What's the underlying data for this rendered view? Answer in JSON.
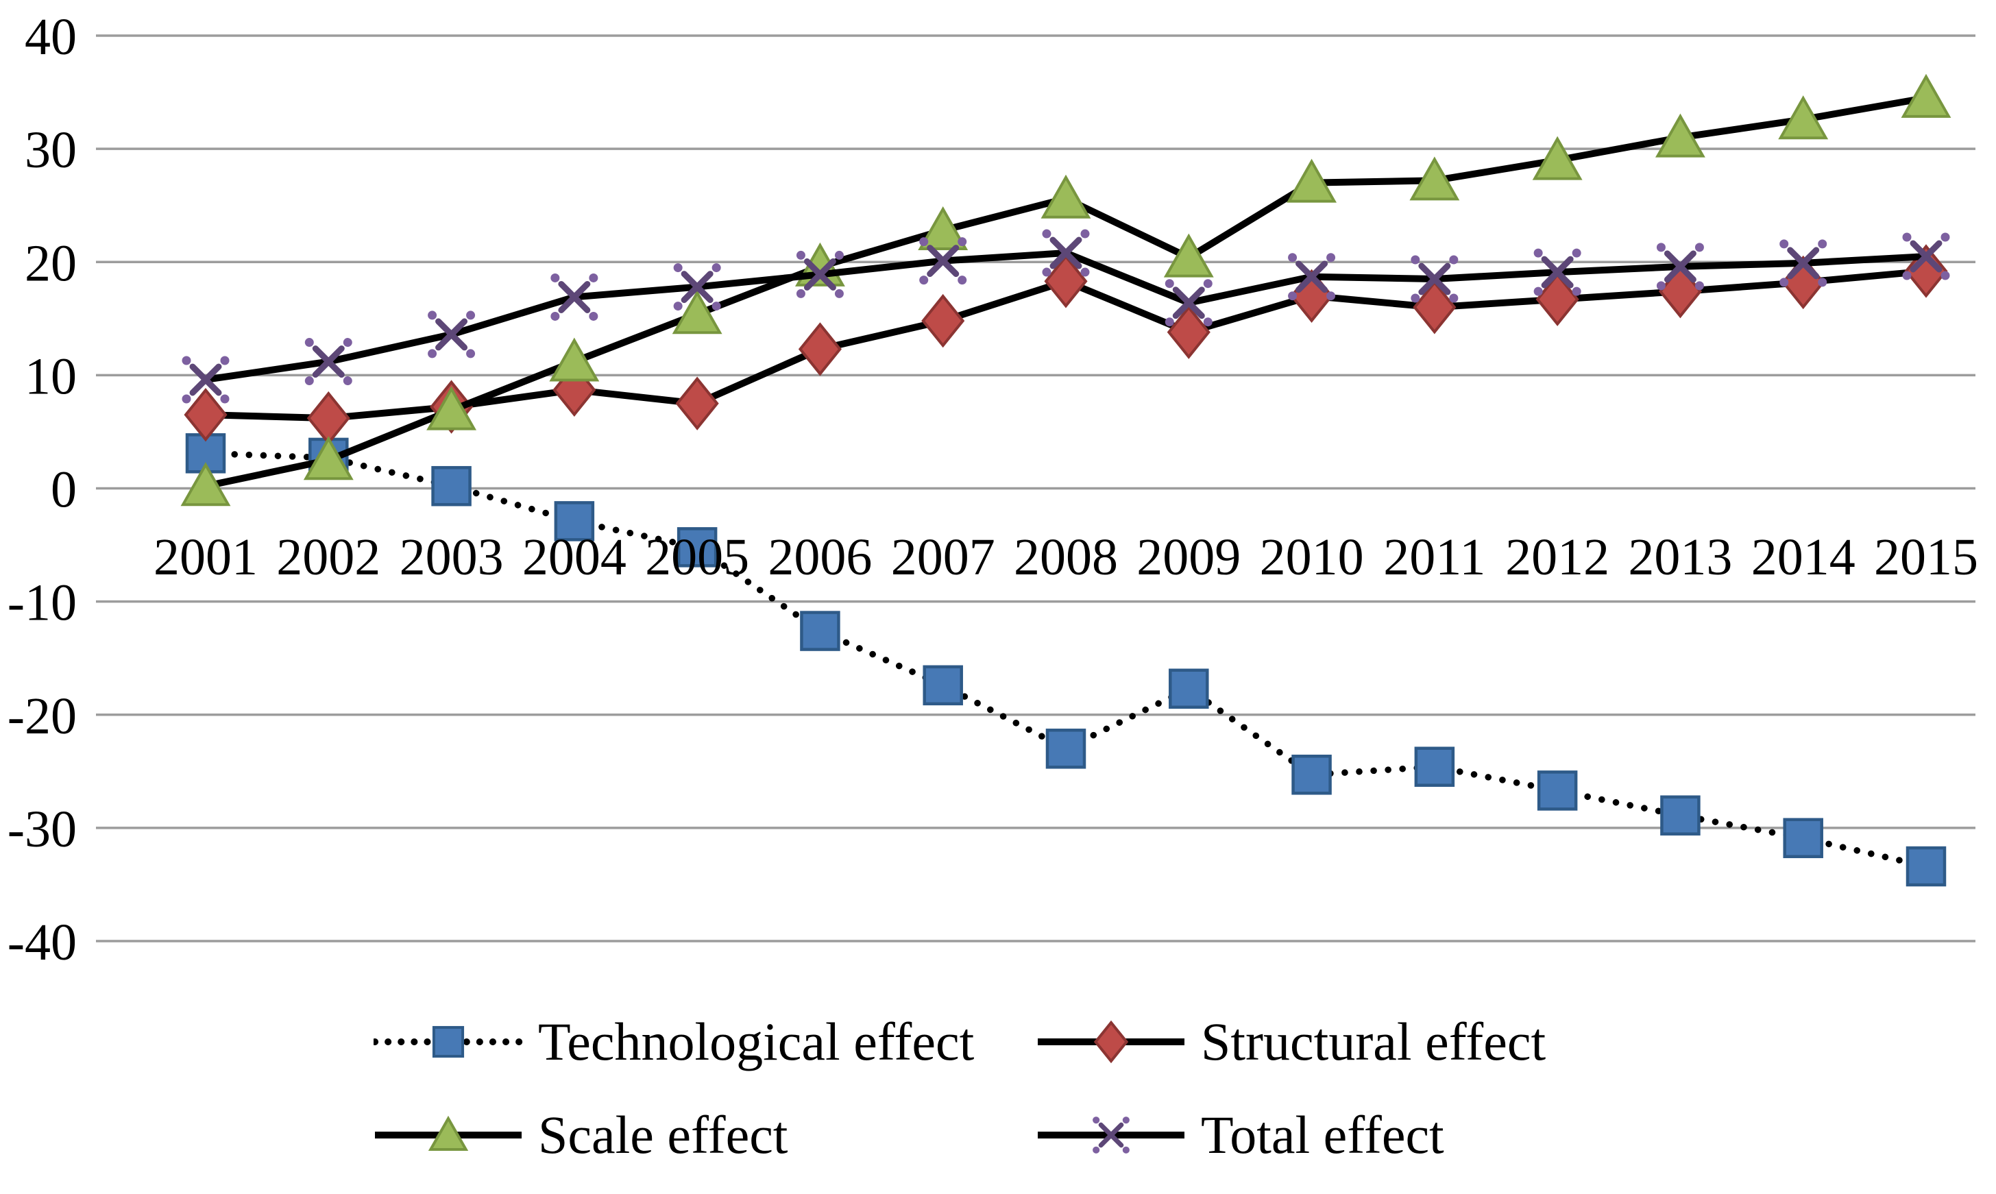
{
  "figure": {
    "background": "#FFFFFF",
    "text_color": "#000000"
  },
  "chart_data": {
    "type": "line",
    "x": [
      "2001",
      "2002",
      "2003",
      "2004",
      "2005",
      "2006",
      "2007",
      "2008",
      "2009",
      "2010",
      "2011",
      "2012",
      "2013",
      "2014",
      "2015"
    ],
    "series": [
      {
        "name": "Technological effect",
        "line_style": "dotted",
        "line_color": "#000000",
        "marker": "square",
        "marker_fill": "#4779B5",
        "marker_stroke": "#2E5A88",
        "values": [
          3.1,
          2.7,
          0.2,
          -2.9,
          -5.2,
          -12.6,
          -17.4,
          -23.0,
          -17.7,
          -25.3,
          -24.6,
          -26.7,
          -28.9,
          -30.9,
          -33.4
        ]
      },
      {
        "name": "Structural effect",
        "line_style": "solid",
        "line_color": "#000000",
        "marker": "diamond",
        "marker_fill": "#BE4B48",
        "marker_stroke": "#8B3432",
        "values": [
          6.5,
          6.2,
          7.2,
          8.7,
          7.5,
          12.3,
          14.8,
          18.3,
          13.8,
          17.0,
          16.0,
          16.7,
          17.4,
          18.2,
          19.2
        ]
      },
      {
        "name": "Scale effect",
        "line_style": "solid",
        "line_color": "#000000",
        "marker": "triangle",
        "marker_fill": "#9BBB59",
        "marker_stroke": "#78963F",
        "values": [
          0.2,
          2.5,
          6.9,
          11.2,
          15.4,
          19.6,
          22.8,
          25.6,
          20.4,
          27.0,
          27.2,
          29.0,
          31.0,
          32.6,
          34.5
        ]
      },
      {
        "name": "Total effect",
        "line_style": "solid",
        "line_color": "#000000",
        "marker": "x-star",
        "marker_fill": "#7D60A0",
        "marker_stroke": "#5D4777",
        "values": [
          9.6,
          11.2,
          13.6,
          16.9,
          17.8,
          18.9,
          20.1,
          20.8,
          16.4,
          18.7,
          18.5,
          19.1,
          19.6,
          19.9,
          20.5
        ]
      }
    ],
    "title": "",
    "xlabel": "",
    "ylabel": "",
    "y_ticks": [
      40,
      30,
      20,
      10,
      0,
      -10,
      -20,
      -30,
      -40
    ],
    "ylim": [
      -40,
      40
    ],
    "grid": "on",
    "grid_color": "#9C9C9C",
    "legend_position": "bottom",
    "legend_rows": [
      [
        0,
        1
      ],
      [
        2,
        3
      ]
    ]
  }
}
